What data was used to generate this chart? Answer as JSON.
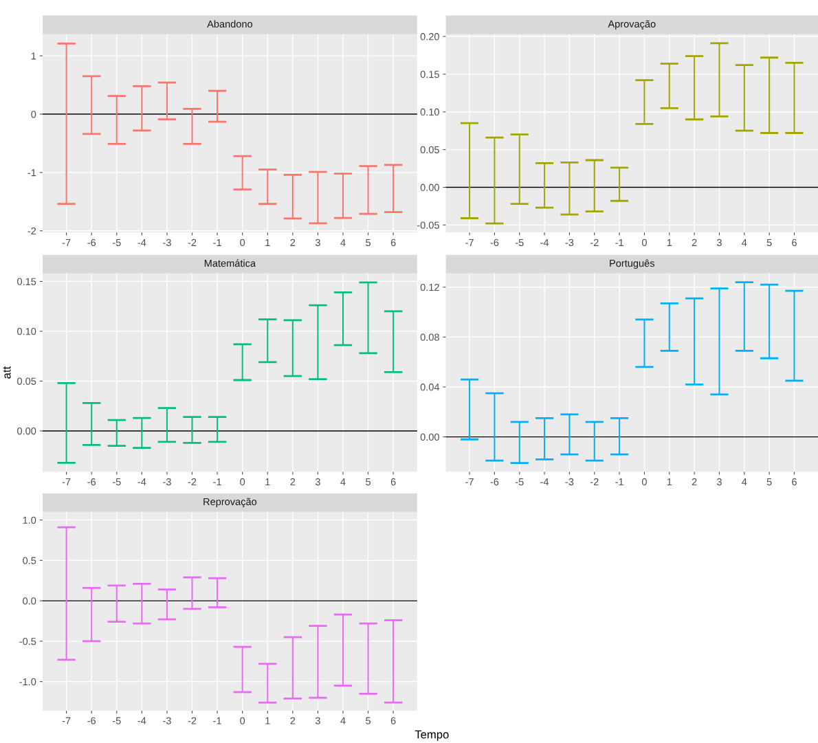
{
  "chart_data": [
    {
      "type": "bar",
      "title": "Abandono",
      "categories": [
        "-7",
        "-6",
        "-5",
        "-4",
        "-3",
        "-2",
        "-1",
        "0",
        "1",
        "2",
        "3",
        "4",
        "5",
        "6"
      ],
      "grid": true,
      "series": [
        {
          "color": "#f8766d",
          "values": [
            2.75,
            0.99,
            0.82,
            0.76,
            0.63,
            0.6,
            0.53,
            0.57,
            0.59,
            0.75,
            0.88,
            0.76,
            0.82,
            0.81
          ],
          "base": [
            -1.54,
            -0.34,
            -0.51,
            -0.28,
            -0.09,
            -0.51,
            -0.13,
            -1.29,
            -1.54,
            -1.79,
            -1.87,
            -1.78,
            -1.71,
            -1.68
          ]
        }
      ],
      "ylim": [
        -2.03,
        1.37
      ],
      "yticks": [
        -2,
        -1,
        0,
        1
      ],
      "ref_lines": [
        {
          "axis": "y",
          "value": 0,
          "color": "#000000"
        }
      ]
    },
    {
      "type": "bar",
      "title": "Aprovação",
      "categories": [
        "-7",
        "-6",
        "-5",
        "-4",
        "-3",
        "-2",
        "-1",
        "0",
        "1",
        "2",
        "3",
        "4",
        "5",
        "6"
      ],
      "grid": true,
      "series": [
        {
          "color": "#a3a500",
          "values": [
            0.126,
            0.114,
            0.092,
            0.059,
            0.069,
            0.068,
            0.044,
            0.058,
            0.059,
            0.084,
            0.097,
            0.087,
            0.1,
            0.093
          ],
          "base": [
            -0.041,
            -0.048,
            -0.022,
            -0.027,
            -0.036,
            -0.032,
            -0.018,
            0.084,
            0.105,
            0.09,
            0.094,
            0.075,
            0.072,
            0.072
          ]
        }
      ],
      "ylim": [
        -0.06,
        0.203
      ],
      "yticks": [
        {
          "value": -0.05,
          "label": "-0.05"
        },
        {
          "value": 0,
          "label": "0.00"
        },
        {
          "value": 0.05,
          "label": "0.05"
        },
        {
          "value": 0.1,
          "label": "0.10"
        },
        {
          "value": 0.15,
          "label": "0.15"
        },
        {
          "value": 0.2,
          "label": "0.20"
        }
      ],
      "ref_lines": [
        {
          "axis": "y",
          "value": 0,
          "color": "#000000"
        }
      ]
    },
    {
      "type": "bar",
      "title": "Matemática",
      "ylabel": "att",
      "categories": [
        "-7",
        "-6",
        "-5",
        "-4",
        "-3",
        "-2",
        "-1",
        "0",
        "1",
        "2",
        "3",
        "4",
        "5",
        "6"
      ],
      "grid": true,
      "series": [
        {
          "color": "#00bf7d",
          "values": [
            0.08,
            0.042,
            0.026,
            0.03,
            0.034,
            0.026,
            0.025,
            0.036,
            0.043,
            0.056,
            0.074,
            0.053,
            0.071,
            0.061
          ],
          "base": [
            -0.032,
            -0.014,
            -0.015,
            -0.017,
            -0.011,
            -0.012,
            -0.011,
            0.051,
            0.069,
            0.055,
            0.052,
            0.086,
            0.078,
            0.059
          ]
        }
      ],
      "ylim": [
        -0.041,
        0.158
      ],
      "yticks": [
        {
          "value": 0,
          "label": "0.00"
        },
        {
          "value": 0.05,
          "label": "0.05"
        },
        {
          "value": 0.1,
          "label": "0.10"
        },
        {
          "value": 0.15,
          "label": "0.15"
        }
      ],
      "ref_lines": [
        {
          "axis": "y",
          "value": 0,
          "color": "#000000"
        }
      ]
    },
    {
      "type": "bar",
      "title": "Português",
      "categories": [
        "-7",
        "-6",
        "-5",
        "-4",
        "-3",
        "-2",
        "-1",
        "0",
        "1",
        "2",
        "3",
        "4",
        "5",
        "6"
      ],
      "grid": true,
      "series": [
        {
          "color": "#00b0f6",
          "values": [
            0.048,
            0.054,
            0.033,
            0.033,
            0.032,
            0.031,
            0.029,
            0.038,
            0.038,
            0.069,
            0.085,
            0.055,
            0.059,
            0.072
          ],
          "base": [
            -0.002,
            -0.019,
            -0.021,
            -0.018,
            -0.014,
            -0.019,
            -0.014,
            0.056,
            0.069,
            0.042,
            0.034,
            0.069,
            0.063,
            0.045
          ]
        }
      ],
      "ylim": [
        -0.028,
        0.131
      ],
      "yticks": [
        {
          "value": 0,
          "label": "0.00"
        },
        {
          "value": 0.04,
          "label": "0.04"
        },
        {
          "value": 0.08,
          "label": "0.08"
        },
        {
          "value": 0.12,
          "label": "0.12"
        }
      ],
      "ref_lines": [
        {
          "axis": "y",
          "value": 0,
          "color": "#000000"
        }
      ]
    },
    {
      "type": "bar",
      "title": "Reprovação",
      "xlabel": "Tempo",
      "categories": [
        "-7",
        "-6",
        "-5",
        "-4",
        "-3",
        "-2",
        "-1",
        "0",
        "1",
        "2",
        "3",
        "4",
        "5",
        "6"
      ],
      "grid": true,
      "series": [
        {
          "color": "#e76bf3",
          "values": [
            1.64,
            0.66,
            0.45,
            0.49,
            0.37,
            0.39,
            0.36,
            0.56,
            0.48,
            0.76,
            0.89,
            0.88,
            0.87,
            1.02
          ],
          "base": [
            -0.73,
            -0.5,
            -0.26,
            -0.28,
            -0.23,
            -0.1,
            -0.08,
            -1.13,
            -1.26,
            -1.21,
            -1.2,
            -1.05,
            -1.15,
            -1.26
          ]
        }
      ],
      "ylim": [
        -1.36,
        1.1
      ],
      "yticks": [
        {
          "value": -1.0,
          "label": "-1.0"
        },
        {
          "value": -0.5,
          "label": "-0.5"
        },
        {
          "value": 0,
          "label": "0.0"
        },
        {
          "value": 0.5,
          "label": "0.5"
        },
        {
          "value": 1.0,
          "label": "1.0"
        }
      ],
      "ref_lines": [
        {
          "axis": "y",
          "value": 0,
          "color": "#000000"
        }
      ]
    }
  ]
}
